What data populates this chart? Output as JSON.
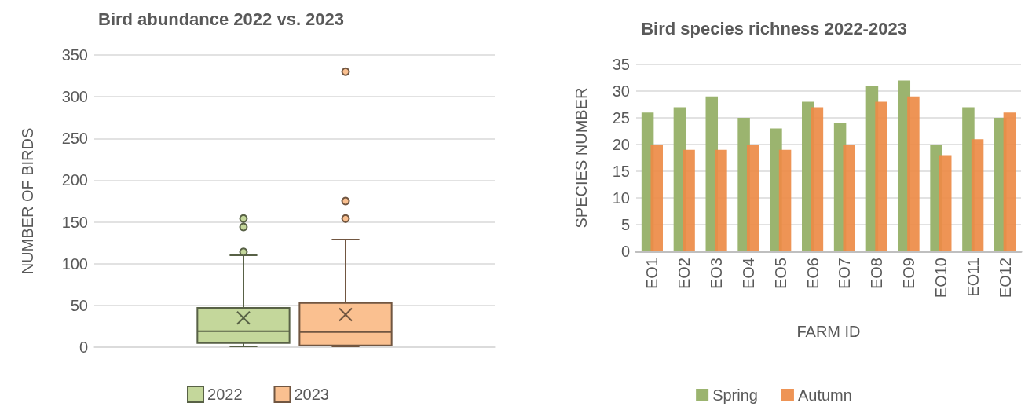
{
  "chart_data": [
    {
      "type": "box",
      "title": "Bird abundance 2022 vs. 2023",
      "ylabel": "NUMBER OF BIRDS",
      "categories": [
        null
      ],
      "ylim": [
        0,
        350
      ],
      "yticks": [
        0,
        50,
        100,
        150,
        200,
        250,
        300,
        350
      ],
      "grid": "y",
      "legend": "bottom",
      "series": [
        {
          "name": "2022",
          "color": "#c4d79b",
          "boxes": [
            {
              "low": 1,
              "q1": 5,
              "median": 19,
              "q3": 47,
              "high": 110,
              "mean": 35,
              "outliers": [
                114,
                144,
                154
              ]
            }
          ]
        },
        {
          "name": "2023",
          "color": "#fac090",
          "boxes": [
            {
              "low": 1,
              "q1": 2,
              "median": 18,
              "q3": 53,
              "high": 129,
              "mean": 39,
              "outliers": [
                154,
                175,
                330
              ]
            }
          ]
        }
      ]
    },
    {
      "type": "bar",
      "title": "Bird species richness 2022-2023",
      "xlabel": "FARM ID",
      "ylabel": "SPECIES NUMBER",
      "categories": [
        "EO1",
        "EO2",
        "EO3",
        "EO4",
        "EO5",
        "EO6",
        "EO7",
        "EO8",
        "EO9",
        "EO10",
        "EO11",
        "EO12"
      ],
      "ylim": [
        0,
        35
      ],
      "yticks": [
        0,
        5,
        10,
        15,
        20,
        25,
        30,
        35
      ],
      "grid": "y",
      "legend": "bottom",
      "series": [
        {
          "name": "Spring",
          "color": "#9bb46f",
          "values": [
            26,
            27,
            29,
            25,
            23,
            28,
            24,
            31,
            32,
            20,
            27,
            25
          ]
        },
        {
          "name": "Autumn",
          "color": "#ed8b46",
          "values": [
            20,
            19,
            19,
            20,
            19,
            27,
            20,
            28,
            29,
            18,
            21,
            26
          ]
        }
      ]
    }
  ]
}
